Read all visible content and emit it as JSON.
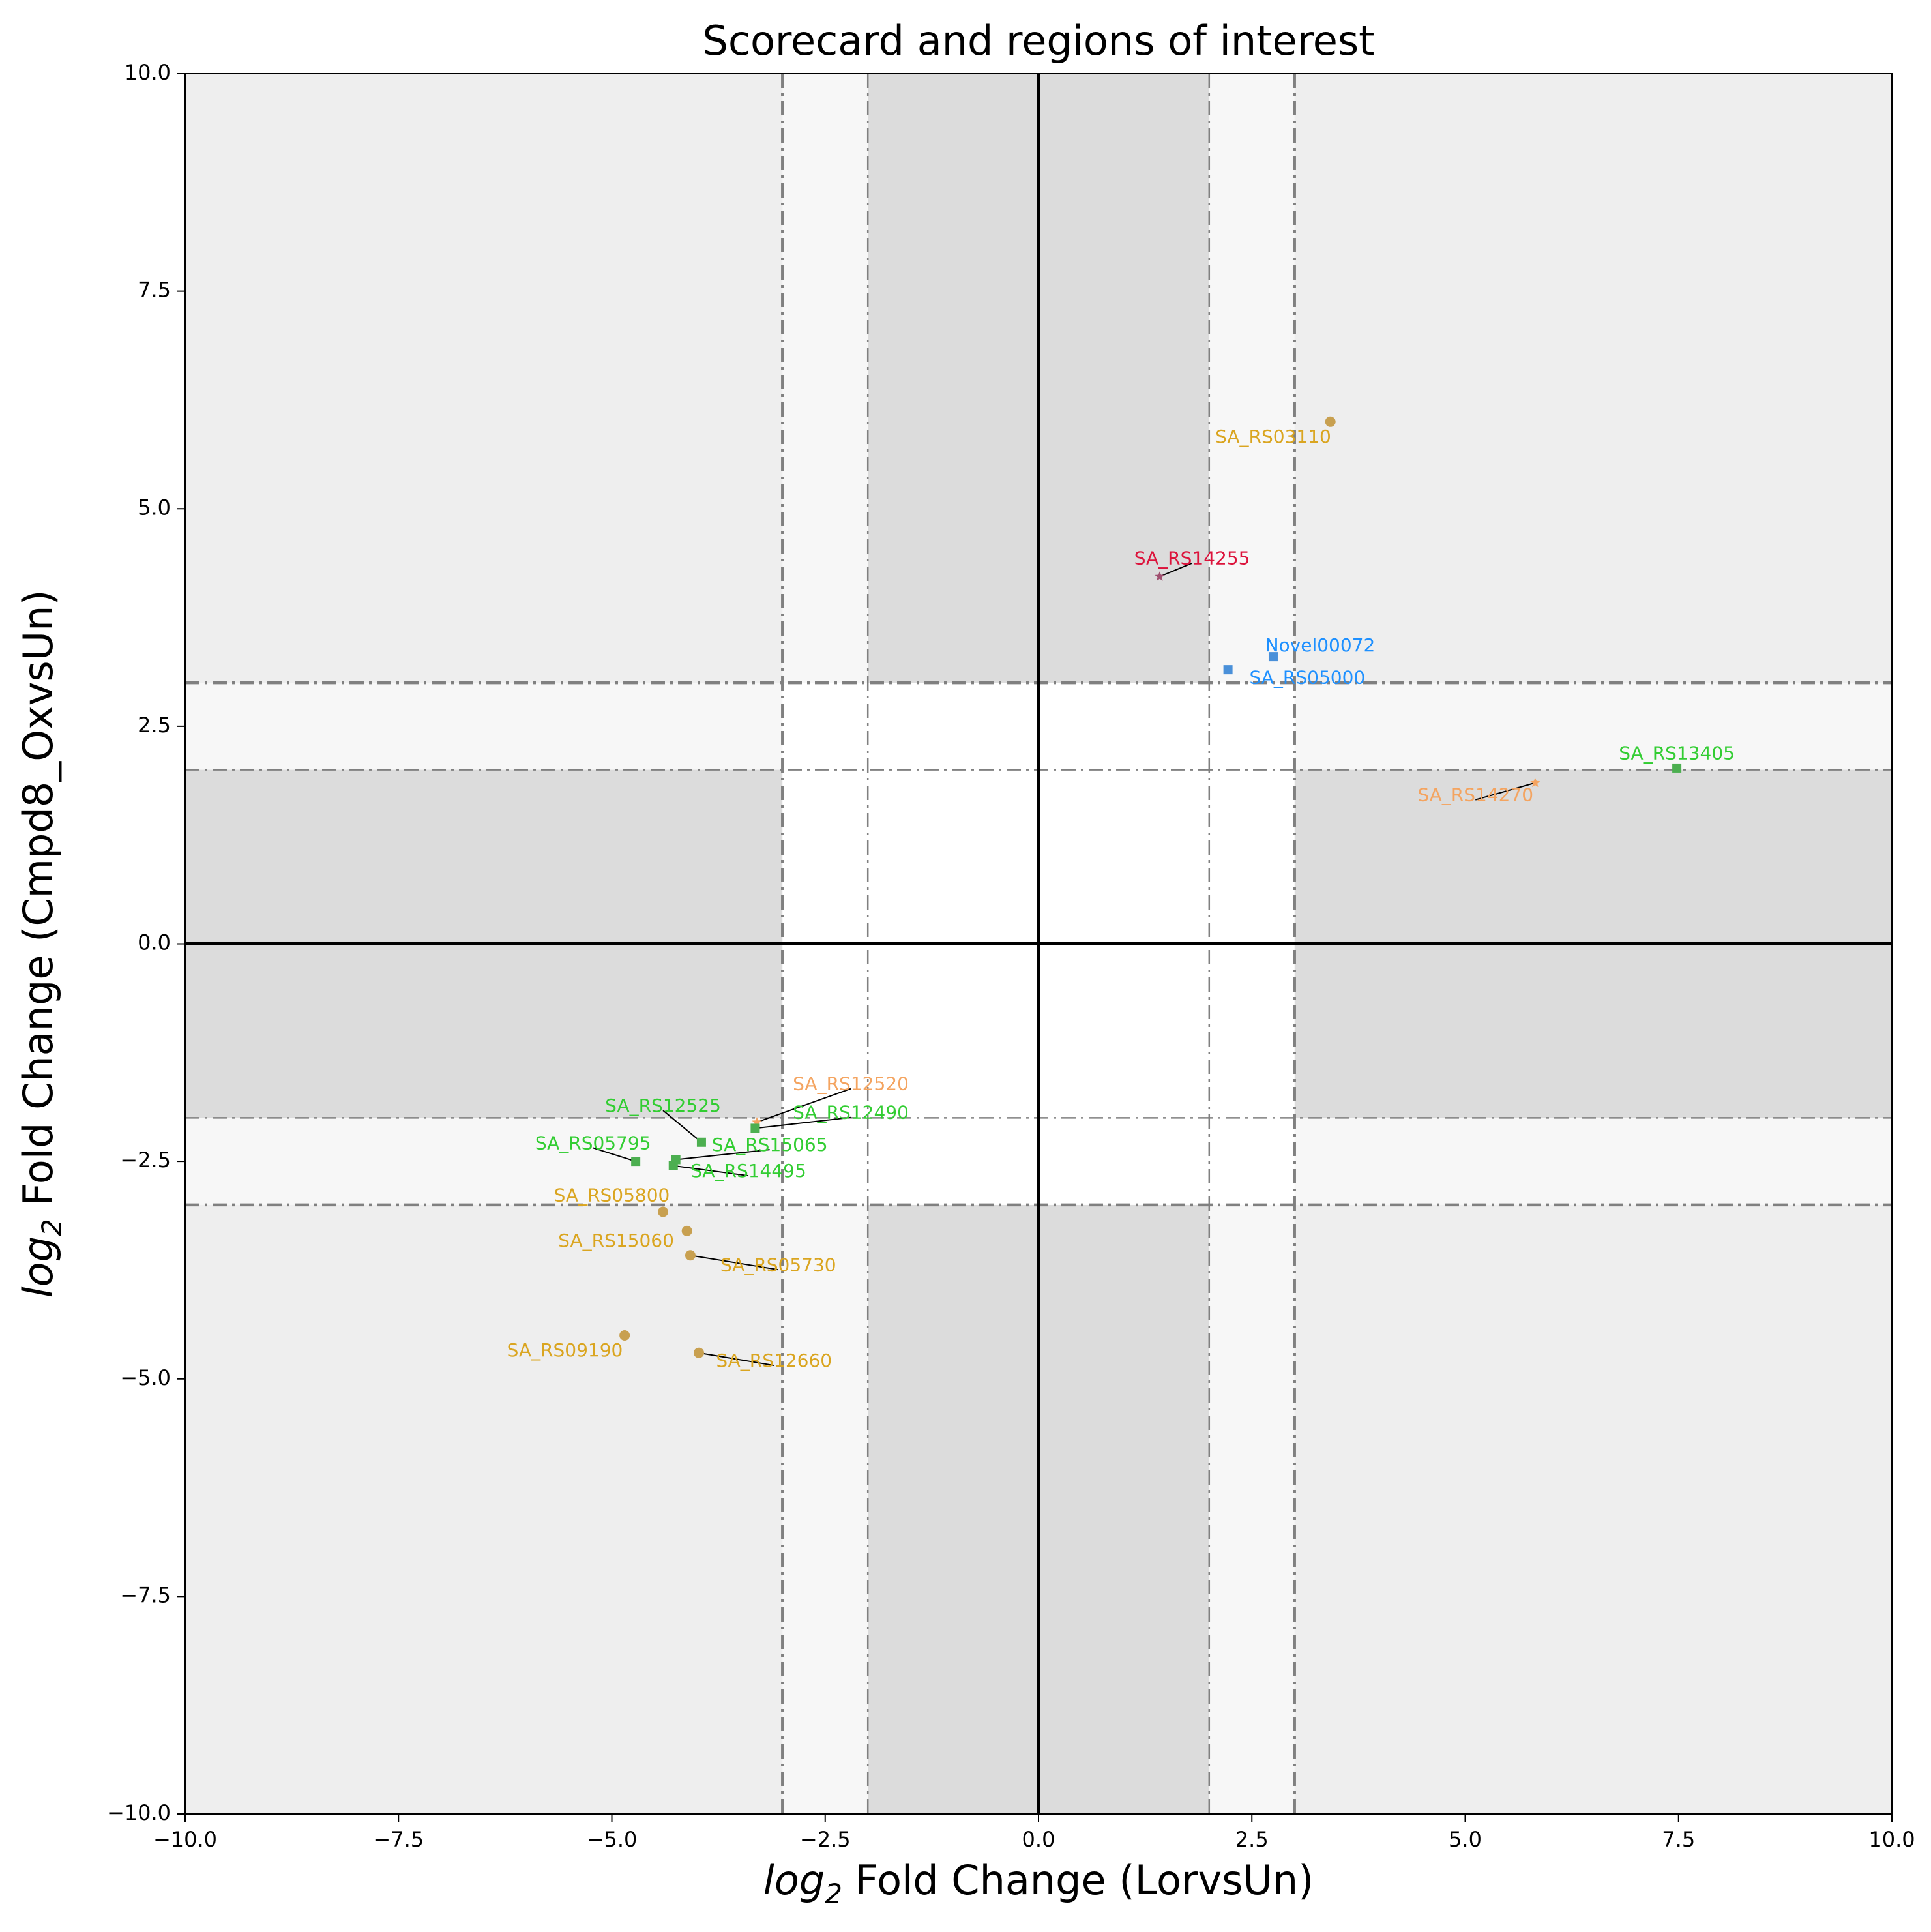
{
  "chart_data": {
    "type": "scatter",
    "title": "Scorecard and regions of interest",
    "xlabel": {
      "prefix": "log",
      "sub": "2",
      "rest": " Fold Change (LorvsUn)"
    },
    "ylabel": {
      "prefix": "log",
      "sub": "2",
      "rest": " Fold Change (Cmpd8_OxvsUn)"
    },
    "xlim": [
      -10,
      10
    ],
    "ylim": [
      -10,
      10
    ],
    "xticks": [
      -10,
      -7.5,
      -5,
      -2.5,
      0,
      2.5,
      5,
      7.5,
      10
    ],
    "yticks": [
      -10,
      -7.5,
      -5,
      -2.5,
      0,
      2.5,
      5,
      7.5,
      10
    ],
    "xtick_labels": [
      "−10.0",
      "−7.5",
      "−5.0",
      "−2.5",
      "0.0",
      "2.5",
      "5.0",
      "7.5",
      "10.0"
    ],
    "ytick_labels": [
      "−10.0",
      "−7.5",
      "−5.0",
      "−2.5",
      "0.0",
      "2.5",
      "5.0",
      "7.5",
      "10.0"
    ],
    "grid": false,
    "thresholds": {
      "inner": 2,
      "outer": 3
    },
    "region_colors": {
      "outer": "#eeeeee",
      "mid": "#f7f7f7",
      "dark": "#dcdcdc",
      "center": "#ffffff"
    },
    "colors": {
      "gold": "#DAA520",
      "gold_marker": "#C8A050",
      "green": "#32CD32",
      "green_marker": "#4CAF50",
      "blue": "#1E90FF",
      "blue_marker": "#4A90D9",
      "red": "#DC143C",
      "red_marker": "#A05070",
      "orange": "#F4A460"
    },
    "points": [
      {
        "name": "SA_RS03110",
        "x": 3.42,
        "y": 6.0,
        "color": "gold",
        "marker": "circle",
        "lx": 2.75,
        "ly": 5.82,
        "leader": false
      },
      {
        "name": "SA_RS14255",
        "x": 1.42,
        "y": 4.22,
        "color": "red",
        "marker": "star",
        "lx": 1.8,
        "ly": 4.42,
        "leader": true
      },
      {
        "name": "Novel00072",
        "x": 2.75,
        "y": 3.3,
        "color": "blue",
        "marker": "square",
        "lx": 3.3,
        "ly": 3.42,
        "leader": false
      },
      {
        "name": "SA_RS05000",
        "x": 2.22,
        "y": 3.15,
        "color": "blue",
        "marker": "square",
        "lx": 3.15,
        "ly": 3.05,
        "leader": false
      },
      {
        "name": "SA_RS13405",
        "x": 7.48,
        "y": 2.02,
        "color": "green",
        "marker": "square",
        "lx": 7.48,
        "ly": 2.18,
        "leader": false
      },
      {
        "name": "SA_RS14270",
        "x": 5.82,
        "y": 1.85,
        "color": "orange",
        "marker": "star",
        "lx": 5.12,
        "ly": 1.7,
        "leader": true
      },
      {
        "name": "SA_RS12520",
        "x": -3.3,
        "y": -2.05,
        "color": "orange",
        "marker": "star",
        "lx": -2.2,
        "ly": -1.62,
        "leader": true
      },
      {
        "name": "SA_RS12490",
        "x": -3.32,
        "y": -2.12,
        "color": "green",
        "marker": "square",
        "lx": -2.2,
        "ly": -1.95,
        "leader": true
      },
      {
        "name": "SA_RS12525",
        "x": -3.95,
        "y": -2.28,
        "color": "green",
        "marker": "square",
        "lx": -4.4,
        "ly": -1.87,
        "leader": true
      },
      {
        "name": "SA_RS05795",
        "x": -4.72,
        "y": -2.5,
        "color": "green",
        "marker": "square",
        "lx": -5.22,
        "ly": -2.3,
        "leader": true
      },
      {
        "name": "SA_RS15065",
        "x": -4.25,
        "y": -2.48,
        "color": "green",
        "marker": "square",
        "lx": -3.15,
        "ly": -2.32,
        "leader": true
      },
      {
        "name": "SA_RS14495",
        "x": -4.28,
        "y": -2.55,
        "color": "green",
        "marker": "square",
        "lx": -3.4,
        "ly": -2.62,
        "leader": true
      },
      {
        "name": "SA_RS05800",
        "x": -4.4,
        "y": -3.08,
        "color": "gold",
        "marker": "circle",
        "lx": -5.0,
        "ly": -2.9,
        "leader": false
      },
      {
        "name": "SA_RS15060",
        "x": -4.12,
        "y": -3.3,
        "color": "gold",
        "marker": "circle",
        "lx": -4.95,
        "ly": -3.42,
        "leader": false
      },
      {
        "name": "SA_RS05730",
        "x": -4.08,
        "y": -3.58,
        "color": "gold",
        "marker": "circle",
        "lx": -3.05,
        "ly": -3.7,
        "leader": true
      },
      {
        "name": "SA_RS09190",
        "x": -4.85,
        "y": -4.5,
        "color": "gold",
        "marker": "circle",
        "lx": -5.55,
        "ly": -4.68,
        "leader": false
      },
      {
        "name": "SA_RS12660",
        "x": -3.98,
        "y": -4.7,
        "color": "gold",
        "marker": "circle",
        "lx": -3.1,
        "ly": -4.8,
        "leader": true
      }
    ]
  }
}
